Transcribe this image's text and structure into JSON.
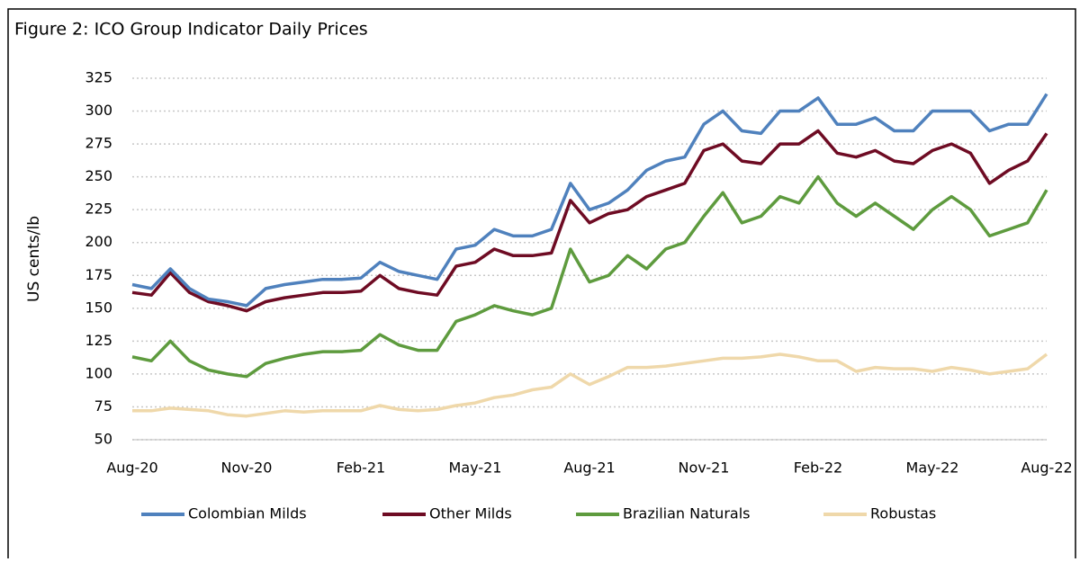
{
  "chart_data": {
    "type": "line",
    "title": "Figure 2: ICO Group Indicator Daily Prices",
    "y_label": "US cents/lb",
    "categories": [
      "Aug-20",
      null,
      null,
      null,
      null,
      null,
      "Nov-20",
      null,
      null,
      null,
      null,
      null,
      "Feb-21",
      null,
      null,
      null,
      null,
      null,
      "May-21",
      null,
      null,
      null,
      null,
      null,
      "Aug-21",
      null,
      null,
      null,
      null,
      null,
      "Nov-21",
      null,
      null,
      null,
      null,
      null,
      "Feb-22",
      null,
      null,
      null,
      null,
      null,
      "May-22",
      null,
      null,
      null,
      null,
      null,
      "Aug-22"
    ],
    "series": [
      {
        "name": "Colombian Milds",
        "color": "#4f81bd",
        "values": [
          168,
          165,
          180,
          165,
          157,
          155,
          152,
          165,
          168,
          170,
          172,
          172,
          173,
          185,
          178,
          175,
          172,
          195,
          198,
          210,
          205,
          205,
          210,
          245,
          225,
          230,
          240,
          255,
          262,
          265,
          290,
          300,
          285,
          283,
          300,
          300,
          310,
          290,
          290,
          295,
          285,
          285,
          300,
          300,
          300,
          285,
          290,
          290,
          313
        ]
      },
      {
        "name": "Other Milds",
        "color": "#6e0b23",
        "values": [
          162,
          160,
          177,
          162,
          155,
          152,
          148,
          155,
          158,
          160,
          162,
          162,
          163,
          175,
          165,
          162,
          160,
          182,
          185,
          195,
          190,
          190,
          192,
          232,
          215,
          222,
          225,
          235,
          240,
          245,
          270,
          275,
          262,
          260,
          275,
          275,
          285,
          268,
          265,
          270,
          262,
          260,
          270,
          275,
          268,
          245,
          255,
          262,
          283
        ]
      },
      {
        "name": "Brazilian Naturals",
        "color": "#5e9b3e",
        "values": [
          113,
          110,
          125,
          110,
          103,
          100,
          98,
          108,
          112,
          115,
          117,
          117,
          118,
          130,
          122,
          118,
          118,
          140,
          145,
          152,
          148,
          145,
          150,
          195,
          170,
          175,
          190,
          180,
          195,
          200,
          220,
          238,
          215,
          220,
          235,
          230,
          250,
          230,
          220,
          230,
          220,
          210,
          225,
          235,
          225,
          205,
          210,
          215,
          240
        ]
      },
      {
        "name": "Robustas",
        "color": "#efd8aa",
        "values": [
          72,
          72,
          74,
          73,
          72,
          69,
          68,
          70,
          72,
          71,
          72,
          72,
          72,
          76,
          73,
          72,
          73,
          76,
          78,
          82,
          84,
          88,
          90,
          100,
          92,
          98,
          105,
          105,
          106,
          108,
          110,
          112,
          112,
          113,
          115,
          113,
          110,
          110,
          102,
          105,
          104,
          104,
          102,
          105,
          103,
          100,
          102,
          104,
          115
        ]
      }
    ],
    "ylim": [
      50,
      325
    ],
    "yticks": [
      50,
      75,
      100,
      125,
      150,
      175,
      200,
      225,
      250,
      275,
      300,
      325
    ],
    "grid": true,
    "legend": "bottom"
  }
}
